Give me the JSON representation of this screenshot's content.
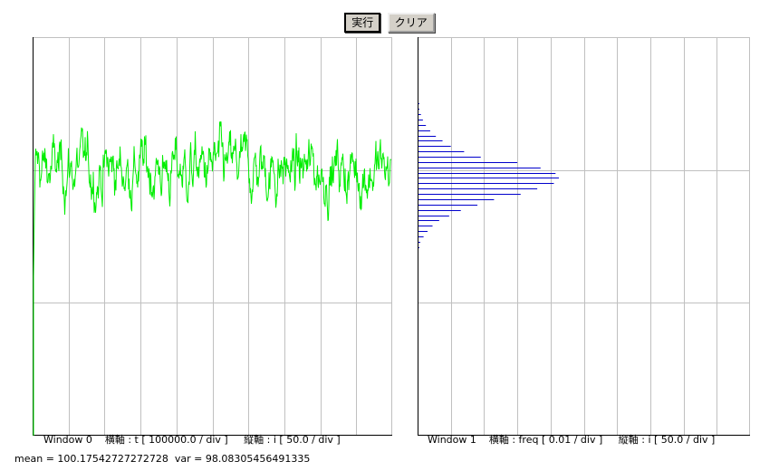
{
  "toolbar": {
    "run_label": "実行",
    "clear_label": "クリア"
  },
  "windows": [
    {
      "caption": "Window 0    横軸 : t [ 100000.0 / div ]     縦軸 : i [ 50.0 / div ]"
    },
    {
      "caption": "Window 1    横軸 : freq [ 0.01 / div ]     縦軸 : i [ 50.0 / div ]"
    }
  ],
  "stats": {
    "text": "mean = 100.17542727272728  var = 98.08305456491335"
  },
  "colors": {
    "trace": "#00ee00",
    "histogram": "#0000cc",
    "grid": "#c0c0c0"
  },
  "chart_data": [
    {
      "type": "line",
      "x_per_div": 100000.0,
      "y_per_div": 50.0,
      "x_range": [
        0,
        1000000
      ],
      "y_range": [
        0,
        150
      ],
      "mean": 100.17542727272728,
      "variance": 98.08305456491335,
      "grid": true
    },
    {
      "type": "bar",
      "orientation": "horizontal",
      "x_per_div": 0.01,
      "y_per_div": 50.0,
      "x_range": [
        0,
        0.1
      ],
      "y_range": [
        0,
        150
      ],
      "grid": true,
      "bins": [
        {
          "y": 125,
          "freq": 0.0002
        },
        {
          "y": 123,
          "freq": 0.0005
        },
        {
          "y": 121,
          "freq": 0.001
        },
        {
          "y": 119,
          "freq": 0.0016
        },
        {
          "y": 117,
          "freq": 0.0025
        },
        {
          "y": 115,
          "freq": 0.0038
        },
        {
          "y": 113,
          "freq": 0.0055
        },
        {
          "y": 111,
          "freq": 0.0075
        },
        {
          "y": 109,
          "freq": 0.01
        },
        {
          "y": 107,
          "freq": 0.014
        },
        {
          "y": 105,
          "freq": 0.019
        },
        {
          "y": 103,
          "freq": 0.03
        },
        {
          "y": 101,
          "freq": 0.037
        },
        {
          "y": 99,
          "freq": 0.0415
        },
        {
          "y": 97,
          "freq": 0.0425
        },
        {
          "y": 95,
          "freq": 0.041
        },
        {
          "y": 93,
          "freq": 0.036
        },
        {
          "y": 91,
          "freq": 0.031
        },
        {
          "y": 89,
          "freq": 0.023
        },
        {
          "y": 87,
          "freq": 0.018
        },
        {
          "y": 85,
          "freq": 0.013
        },
        {
          "y": 83,
          "freq": 0.0095
        },
        {
          "y": 81,
          "freq": 0.0065
        },
        {
          "y": 79,
          "freq": 0.0045
        },
        {
          "y": 77,
          "freq": 0.003
        },
        {
          "y": 75,
          "freq": 0.0018
        },
        {
          "y": 73,
          "freq": 0.0008
        },
        {
          "y": 71,
          "freq": 0.0003
        }
      ]
    }
  ]
}
